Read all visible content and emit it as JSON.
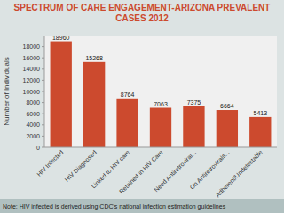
{
  "chart_data": {
    "type": "bar",
    "title": "SPECTRUM OF CARE ENGAGEMENT-ARIZONA PREVALENT\nCASES 2012",
    "categories": [
      "HIV Infected",
      "HIV Diagnosed",
      "Linked to HIV care",
      "Retained in HIV Care",
      "Need Antiretroviral...",
      "On Antiretrovirals...",
      "Adherent/Undetectable"
    ],
    "values": [
      18960,
      15268,
      8764,
      7063,
      7375,
      6664,
      5413
    ],
    "color": "#CC4A2E",
    "ylabel": "Number of Individuals",
    "ylim": [
      0,
      20000
    ],
    "yticks": [
      0,
      2000,
      4000,
      6000,
      8000,
      10000,
      12000,
      14000,
      16000,
      18000
    ],
    "grid": false,
    "data_labels": true,
    "annotations": [
      "Note: HIV infected is derived using CDC's national infection estimation guidelines"
    ]
  }
}
